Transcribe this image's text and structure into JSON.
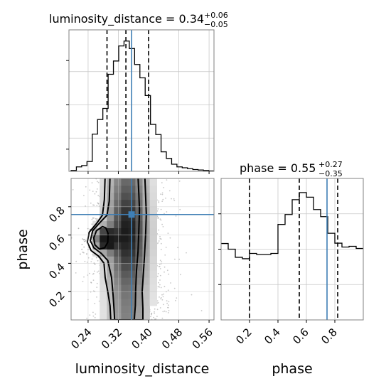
{
  "colors": {
    "truth": "#3f7fb5",
    "hist": "#000000",
    "frame": "#808080",
    "grid": "#c8c8c8",
    "scatter": "#9a9a9a"
  },
  "chart_data": {
    "type": "corner",
    "parameters": [
      "luminosity_distance",
      "phase"
    ],
    "truths": {
      "luminosity_distance": 0.355,
      "phase": 0.745
    },
    "quantiles": {
      "luminosity_distance": [
        0.29,
        0.34,
        0.4
      ],
      "phase": [
        0.2,
        0.55,
        0.82
      ]
    },
    "titles": {
      "luminosity_distance": {
        "main": "luminosity_distance = 0.34",
        "sup": "+0.06",
        "sub": "−0.05"
      },
      "phase": {
        "main": "phase = 0.55",
        "sup": "+0.27",
        "sub": "−0.35"
      }
    },
    "xlabels": {
      "luminosity_distance": "luminosity_distance",
      "phase": "phase"
    },
    "ylabel": "phase",
    "ticks": {
      "luminosity_distance": [
        "0.24",
        "0.32",
        "0.40",
        "0.48",
        "0.56"
      ],
      "phase": [
        "0.2",
        "0.4",
        "0.6",
        "0.8"
      ]
    },
    "ranges": {
      "luminosity_distance": [
        0.195,
        0.573
      ],
      "phase": [
        0.0,
        1.0
      ]
    },
    "luminosity_distance_hist": {
      "bin_edges": [
        0.195,
        0.209,
        0.223,
        0.237,
        0.251,
        0.265,
        0.279,
        0.293,
        0.307,
        0.321,
        0.335,
        0.349,
        0.363,
        0.377,
        0.391,
        0.405,
        0.419,
        0.433,
        0.447,
        0.461,
        0.475,
        0.489,
        0.503,
        0.517,
        0.531,
        0.545,
        0.559,
        0.573
      ],
      "counts": [
        2,
        10,
        13,
        22,
        84,
        117,
        142,
        219,
        249,
        283,
        294,
        277,
        241,
        211,
        171,
        106,
        83,
        44,
        29,
        16,
        10,
        8,
        6,
        4,
        3,
        2,
        1
      ]
    },
    "phase_hist": {
      "bin_edges": [
        0.0,
        0.05,
        0.1,
        0.15,
        0.2,
        0.25,
        0.3,
        0.35,
        0.4,
        0.45,
        0.5,
        0.55,
        0.6,
        0.65,
        0.7,
        0.75,
        0.8,
        0.85,
        0.9,
        0.95,
        1.0
      ],
      "counts": [
        2.16,
        2.0,
        1.77,
        1.73,
        1.88,
        1.85,
        1.85,
        1.88,
        2.7,
        2.98,
        3.4,
        3.6,
        3.47,
        3.12,
        2.92,
        2.45,
        2.17,
        2.06,
        2.08,
        2.02
      ]
    }
  }
}
